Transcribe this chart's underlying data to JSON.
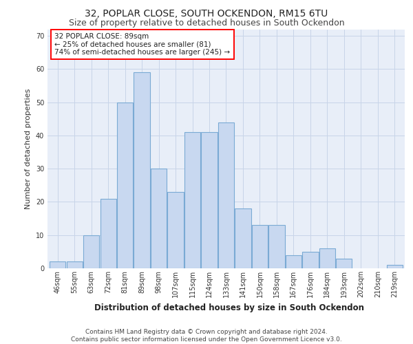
{
  "title1": "32, POPLAR CLOSE, SOUTH OCKENDON, RM15 6TU",
  "title2": "Size of property relative to detached houses in South Ockendon",
  "xlabel": "Distribution of detached houses by size in South Ockendon",
  "ylabel": "Number of detached properties",
  "categories": [
    "46sqm",
    "55sqm",
    "63sqm",
    "72sqm",
    "81sqm",
    "89sqm",
    "98sqm",
    "107sqm",
    "115sqm",
    "124sqm",
    "133sqm",
    "141sqm",
    "150sqm",
    "158sqm",
    "167sqm",
    "176sqm",
    "184sqm",
    "193sqm",
    "202sqm",
    "210sqm",
    "219sqm"
  ],
  "values": [
    2,
    2,
    10,
    21,
    50,
    59,
    30,
    23,
    41,
    41,
    44,
    18,
    13,
    13,
    4,
    5,
    6,
    3,
    0,
    0,
    1
  ],
  "highlight_index": 5,
  "bar_color": "#c8d8f0",
  "bar_edge_color": "#7aaad4",
  "highlight_edge_color": "#7aaad4",
  "annotation_text": "32 POPLAR CLOSE: 89sqm\n← 25% of detached houses are smaller (81)\n74% of semi-detached houses are larger (245) →",
  "annotation_box_color": "white",
  "annotation_box_edge_color": "red",
  "ylim": [
    0,
    72
  ],
  "yticks": [
    0,
    10,
    20,
    30,
    40,
    50,
    60,
    70
  ],
  "grid_color": "#c8d4e8",
  "background_color": "#e8eef8",
  "footer_line1": "Contains HM Land Registry data © Crown copyright and database right 2024.",
  "footer_line2": "Contains public sector information licensed under the Open Government Licence v3.0.",
  "title1_fontsize": 10,
  "title2_fontsize": 9,
  "xlabel_fontsize": 8.5,
  "ylabel_fontsize": 8,
  "tick_fontsize": 7,
  "annotation_fontsize": 7.5,
  "footer_fontsize": 6.5
}
